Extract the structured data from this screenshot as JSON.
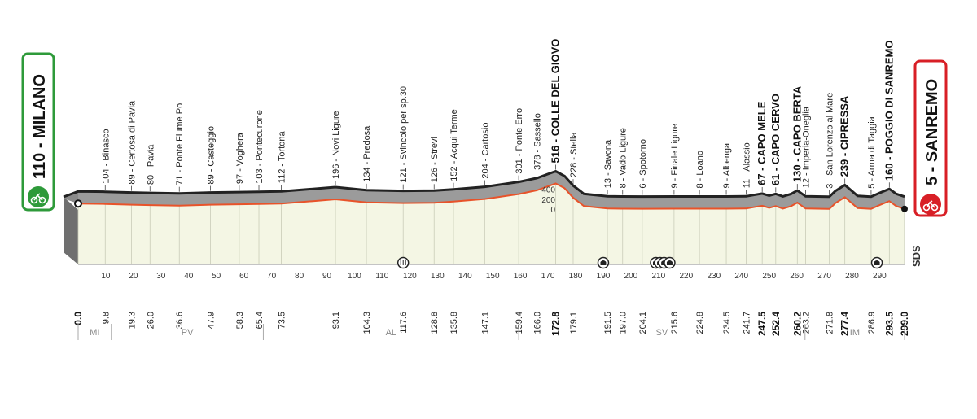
{
  "chart_data": {
    "type": "area",
    "title": "",
    "xlabel": "",
    "ylabel": "",
    "xlim": [
      0,
      299
    ],
    "ylim": [
      0,
      600
    ],
    "x_ticks": [
      0,
      10,
      20,
      30,
      40,
      50,
      60,
      70,
      80,
      90,
      100,
      110,
      120,
      130,
      140,
      150,
      160,
      170,
      180,
      190,
      200,
      210,
      220,
      230,
      240,
      250,
      260,
      270,
      280,
      290
    ],
    "y_ticks": [
      "0",
      "200",
      "400"
    ],
    "start": {
      "name": "MILANO",
      "altitude": "110",
      "label": "110 - MILANO"
    },
    "finish": {
      "name": "SANREMO",
      "altitude": "5",
      "label": "5 - SANREMO"
    },
    "brand": "SDS",
    "colors": {
      "start_badge": "#2e9a3a",
      "finish_badge": "#d81f26",
      "profile_fill": "#9b9b9b",
      "profile_line": "#222222",
      "route_line": "#e8532a",
      "plain_fill": "#f4f6e4"
    },
    "profile": [
      {
        "km": 0,
        "alt": 110
      },
      {
        "km": 9.8,
        "alt": 104
      },
      {
        "km": 19.3,
        "alt": 89
      },
      {
        "km": 26.0,
        "alt": 80
      },
      {
        "km": 36.6,
        "alt": 71
      },
      {
        "km": 47.9,
        "alt": 89
      },
      {
        "km": 58.3,
        "alt": 97
      },
      {
        "km": 65.4,
        "alt": 103
      },
      {
        "km": 73.5,
        "alt": 112
      },
      {
        "km": 85,
        "alt": 160
      },
      {
        "km": 93.1,
        "alt": 196
      },
      {
        "km": 104.3,
        "alt": 134
      },
      {
        "km": 117.6,
        "alt": 121
      },
      {
        "km": 128.8,
        "alt": 126
      },
      {
        "km": 135.8,
        "alt": 152
      },
      {
        "km": 147.1,
        "alt": 204
      },
      {
        "km": 159.4,
        "alt": 301
      },
      {
        "km": 166.0,
        "alt": 378
      },
      {
        "km": 170,
        "alt": 460
      },
      {
        "km": 172.8,
        "alt": 516
      },
      {
        "km": 176,
        "alt": 420
      },
      {
        "km": 179.1,
        "alt": 228
      },
      {
        "km": 183,
        "alt": 60
      },
      {
        "km": 191.5,
        "alt": 13
      },
      {
        "km": 197.0,
        "alt": 8
      },
      {
        "km": 204.1,
        "alt": 6
      },
      {
        "km": 215.6,
        "alt": 9
      },
      {
        "km": 224.8,
        "alt": 8
      },
      {
        "km": 234.5,
        "alt": 9
      },
      {
        "km": 241.7,
        "alt": 11
      },
      {
        "km": 245,
        "alt": 45
      },
      {
        "km": 247.5,
        "alt": 67
      },
      {
        "km": 250,
        "alt": 25
      },
      {
        "km": 252.4,
        "alt": 61
      },
      {
        "km": 255,
        "alt": 10
      },
      {
        "km": 258,
        "alt": 60
      },
      {
        "km": 260.2,
        "alt": 130
      },
      {
        "km": 263.2,
        "alt": 12
      },
      {
        "km": 271.8,
        "alt": 3
      },
      {
        "km": 274,
        "alt": 120
      },
      {
        "km": 277.4,
        "alt": 239
      },
      {
        "km": 282,
        "alt": 20
      },
      {
        "km": 286.9,
        "alt": 5
      },
      {
        "km": 290,
        "alt": 80
      },
      {
        "km": 293.5,
        "alt": 160
      },
      {
        "km": 296,
        "alt": 60
      },
      {
        "km": 299.0,
        "alt": 5
      }
    ],
    "waypoints": [
      {
        "km": 9.8,
        "label": "104 - Binasco",
        "bold": false
      },
      {
        "km": 19.3,
        "label": "89 - Certosa di Pavia",
        "bold": false
      },
      {
        "km": 26.0,
        "label": "80 - Pavia",
        "bold": false
      },
      {
        "km": 36.6,
        "label": "71 - Ponte Fiume Po",
        "bold": false
      },
      {
        "km": 47.9,
        "label": "89 - Casteggio",
        "bold": false
      },
      {
        "km": 58.3,
        "label": "97 - Voghera",
        "bold": false
      },
      {
        "km": 65.4,
        "label": "103 - Pontecurone",
        "bold": false
      },
      {
        "km": 73.5,
        "label": "112 - Tortona",
        "bold": false
      },
      {
        "km": 93.1,
        "label": "196 - Novi Ligure",
        "bold": false
      },
      {
        "km": 104.3,
        "label": "134 - Predosa",
        "bold": false
      },
      {
        "km": 117.6,
        "label": "121 - Svincolo per sp.30",
        "bold": false
      },
      {
        "km": 128.8,
        "label": "126 - Strevi",
        "bold": false
      },
      {
        "km": 135.8,
        "label": "152 - Acqui Terme",
        "bold": false
      },
      {
        "km": 147.1,
        "label": "204 - Cartosio",
        "bold": false
      },
      {
        "km": 159.4,
        "label": "301 - Ponte Erro",
        "bold": false
      },
      {
        "km": 166.0,
        "label": "378 - Sassello",
        "bold": false
      },
      {
        "km": 172.8,
        "label": "516 - COLLE DEL GIOVO",
        "bold": true
      },
      {
        "km": 179.1,
        "label": "228 - Stella",
        "bold": false
      },
      {
        "km": 191.5,
        "label": "13 - Savona",
        "bold": false
      },
      {
        "km": 197.0,
        "label": "8 - Vado Ligure",
        "bold": false
      },
      {
        "km": 204.1,
        "label": "6 - Spotorno",
        "bold": false
      },
      {
        "km": 215.6,
        "label": "9 - Finale Ligure",
        "bold": false
      },
      {
        "km": 224.8,
        "label": "8 - Loano",
        "bold": false
      },
      {
        "km": 234.5,
        "label": "9 - Albenga",
        "bold": false
      },
      {
        "km": 241.7,
        "label": "11 - Alassio",
        "bold": false
      },
      {
        "km": 247.5,
        "label": "67 - CAPO MELE",
        "bold": true
      },
      {
        "km": 252.4,
        "label": "61 - CAPO CERVO",
        "bold": true
      },
      {
        "km": 260.2,
        "label": "130 - CAPO BERTA",
        "bold": true
      },
      {
        "km": 263.2,
        "label": "12 - Imperia-Oneglia",
        "bold": false
      },
      {
        "km": 271.8,
        "label": "3 - San Lorenzo al Mare",
        "bold": false
      },
      {
        "km": 277.4,
        "label": "239 - CIPRESSA",
        "bold": true
      },
      {
        "km": 286.9,
        "label": "5 - Arma di Taggia",
        "bold": false
      },
      {
        "km": 293.5,
        "label": "160 - POGGIO DI SANREMO",
        "bold": true
      }
    ],
    "km_markers": [
      {
        "km": 0,
        "label": "0.0",
        "bold": true
      },
      {
        "km": 9.8,
        "label": "9.8",
        "bold": false
      },
      {
        "km": 19.3,
        "label": "19.3",
        "bold": false
      },
      {
        "km": 26.0,
        "label": "26.0",
        "bold": false
      },
      {
        "km": 36.6,
        "label": "36.6",
        "bold": false
      },
      {
        "km": 47.9,
        "label": "47.9",
        "bold": false
      },
      {
        "km": 58.3,
        "label": "58.3",
        "bold": false
      },
      {
        "km": 65.4,
        "label": "65.4",
        "bold": false
      },
      {
        "km": 73.5,
        "label": "73.5",
        "bold": false
      },
      {
        "km": 93.1,
        "label": "93.1",
        "bold": false
      },
      {
        "km": 104.3,
        "label": "104.3",
        "bold": false
      },
      {
        "km": 117.6,
        "label": "117.6",
        "bold": false
      },
      {
        "km": 128.8,
        "label": "128.8",
        "bold": false
      },
      {
        "km": 135.8,
        "label": "135.8",
        "bold": false
      },
      {
        "km": 147.1,
        "label": "147.1",
        "bold": false
      },
      {
        "km": 159.4,
        "label": "159.4",
        "bold": false
      },
      {
        "km": 166.0,
        "label": "166.0",
        "bold": false
      },
      {
        "km": 172.8,
        "label": "172.8",
        "bold": true
      },
      {
        "km": 179.1,
        "label": "179.1",
        "bold": false
      },
      {
        "km": 191.5,
        "label": "191.5",
        "bold": false
      },
      {
        "km": 197.0,
        "label": "197.0",
        "bold": false
      },
      {
        "km": 204.1,
        "label": "204.1",
        "bold": false
      },
      {
        "km": 215.6,
        "label": "215.6",
        "bold": false
      },
      {
        "km": 224.8,
        "label": "224.8",
        "bold": false
      },
      {
        "km": 234.5,
        "label": "234.5",
        "bold": false
      },
      {
        "km": 241.7,
        "label": "241.7",
        "bold": false
      },
      {
        "km": 247.5,
        "label": "247.5",
        "bold": true
      },
      {
        "km": 252.4,
        "label": "252.4",
        "bold": true
      },
      {
        "km": 260.2,
        "label": "260.2",
        "bold": true
      },
      {
        "km": 263.2,
        "label": "263.2",
        "bold": false
      },
      {
        "km": 271.8,
        "label": "271.8",
        "bold": false
      },
      {
        "km": 277.4,
        "label": "277.4",
        "bold": true
      },
      {
        "km": 286.9,
        "label": "286.9",
        "bold": false
      },
      {
        "km": 293.5,
        "label": "293.5",
        "bold": true
      },
      {
        "km": 299.0,
        "label": "299.0",
        "bold": true
      }
    ],
    "regions": [
      {
        "label": "MI",
        "from_km": 0,
        "to_km": 12
      },
      {
        "label": "PV",
        "from_km": 12,
        "to_km": 67
      },
      {
        "label": "AL",
        "from_km": 67,
        "to_km": 159.4
      },
      {
        "label": "SV",
        "from_km": 159.4,
        "to_km": 263
      },
      {
        "label": "IM",
        "from_km": 263,
        "to_km": 299
      }
    ],
    "icons": [
      {
        "km": 117.6,
        "name": "feed-zone-icon"
      },
      {
        "km": 190,
        "name": "tunnel-icon"
      },
      {
        "km": 209,
        "name": "tunnel-icon"
      },
      {
        "km": 210.5,
        "name": "tunnel-icon"
      },
      {
        "km": 212,
        "name": "tunnel-icon"
      },
      {
        "km": 214,
        "name": "tunnel-icon"
      },
      {
        "km": 289,
        "name": "tunnel-icon"
      }
    ]
  }
}
